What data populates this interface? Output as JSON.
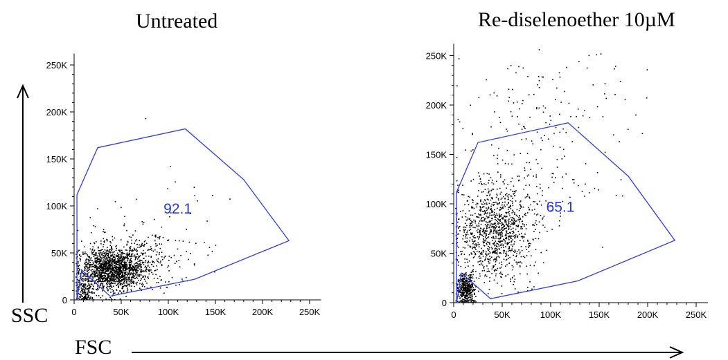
{
  "labels": {
    "y_axis": "SSC",
    "x_axis": "FSC"
  },
  "colors": {
    "gate": "#2a3ce8",
    "gate_label": "#2233ee",
    "events": "#000000"
  },
  "chart_data": [
    {
      "type": "scatter",
      "title": "Untreated",
      "xlabel": "FSC",
      "ylabel": "SSC",
      "xlim": [
        0,
        262144
      ],
      "ylim": [
        0,
        262144
      ],
      "x_ticks": [
        "0",
        "50K",
        "100K",
        "150K",
        "200K",
        "250K"
      ],
      "y_ticks": [
        "0",
        "50K",
        "100K",
        "150K",
        "200K",
        "250K"
      ],
      "gate": {
        "value": "92.1",
        "polygon": [
          [
            3000,
            0
          ],
          [
            8000,
            32000
          ],
          [
            38000,
            4000
          ],
          [
            128000,
            22000
          ],
          [
            228000,
            63000
          ],
          [
            180000,
            128000
          ],
          [
            118000,
            182000
          ],
          [
            25000,
            162000
          ],
          [
            3000,
            112000
          ],
          [
            3000,
            0
          ]
        ]
      },
      "populations": [
        {
          "center": [
            40000,
            33000
          ],
          "spread": [
            17000,
            11000
          ],
          "count": 1500
        },
        {
          "center": [
            65000,
            42000
          ],
          "spread": [
            30000,
            16000
          ],
          "count": 350
        },
        {
          "center": [
            11000,
            9000
          ],
          "spread": [
            5000,
            8000
          ],
          "count": 160
        },
        {
          "center": [
            90000,
            95000
          ],
          "spread": [
            50000,
            30000
          ],
          "count": 30
        }
      ]
    },
    {
      "type": "scatter",
      "title": "Re-diselenoether 10µM",
      "xlabel": "FSC",
      "ylabel": "SSC",
      "xlim": [
        0,
        262144
      ],
      "ylim": [
        0,
        262144
      ],
      "x_ticks": [
        "0",
        "50K",
        "100K",
        "150K",
        "200K",
        "250K"
      ],
      "y_ticks": [
        "0",
        "50K",
        "100K",
        "150K",
        "200K",
        "250K"
      ],
      "gate": {
        "value": "65.1",
        "polygon": [
          [
            3000,
            0
          ],
          [
            8000,
            30000
          ],
          [
            38000,
            4000
          ],
          [
            128000,
            22000
          ],
          [
            228000,
            63000
          ],
          [
            180000,
            128000
          ],
          [
            118000,
            182000
          ],
          [
            25000,
            162000
          ],
          [
            3000,
            112000
          ],
          [
            3000,
            0
          ]
        ]
      },
      "populations": [
        {
          "center": [
            42000,
            72000
          ],
          "spread": [
            20000,
            24000
          ],
          "count": 1100
        },
        {
          "center": [
            12000,
            14000
          ],
          "spread": [
            5000,
            8000
          ],
          "count": 420
        },
        {
          "center": [
            85000,
            140000
          ],
          "spread": [
            40000,
            40000
          ],
          "count": 160
        },
        {
          "center": [
            95000,
            215000
          ],
          "spread": [
            45000,
            25000
          ],
          "count": 70
        }
      ]
    }
  ]
}
